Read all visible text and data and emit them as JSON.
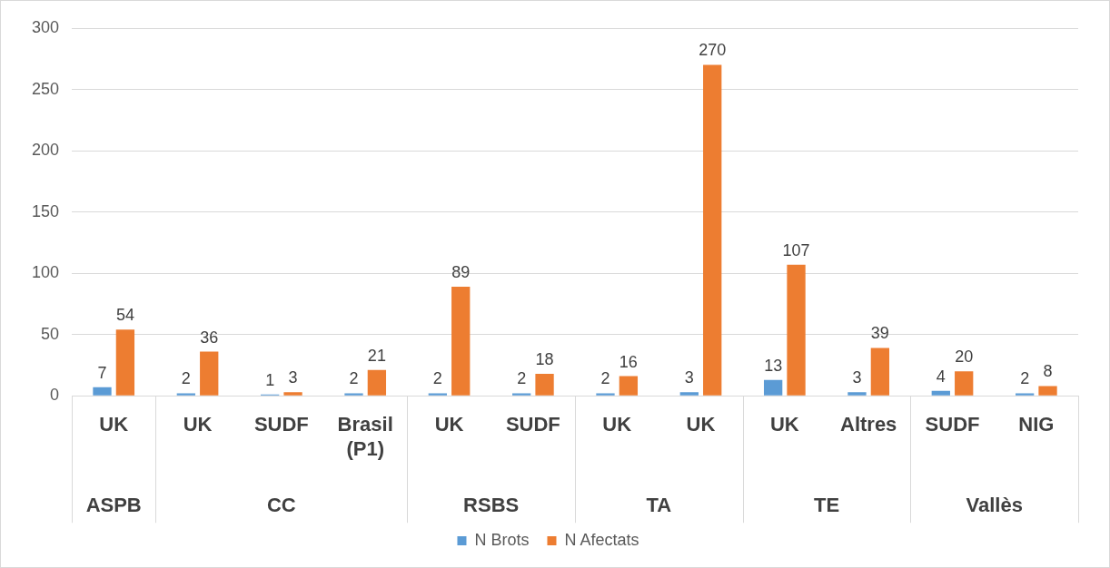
{
  "chart_data": {
    "type": "bar",
    "categories": [
      "UK",
      "UK",
      "SUDF",
      "Brasil (P1)",
      "UK",
      "SUDF",
      "UK",
      "UK",
      "UK",
      "Altres",
      "SUDF",
      "NIG"
    ],
    "series": [
      {
        "name": "N Brots",
        "color": "#5b9bd5",
        "values": [
          7,
          2,
          1,
          2,
          2,
          2,
          2,
          3,
          13,
          3,
          4,
          2
        ]
      },
      {
        "name": "N Afectats",
        "color": "#ed7d31",
        "values": [
          54,
          36,
          3,
          21,
          89,
          18,
          16,
          270,
          107,
          39,
          20,
          8
        ]
      }
    ],
    "annotations": [
      "ASPB",
      "CC",
      "RSBS",
      "TA",
      "TE",
      "Vallès"
    ],
    "ylim": [
      0,
      300
    ],
    "yticks": [
      0,
      50,
      100,
      150,
      200,
      250,
      300
    ],
    "grid": "y",
    "legend": "bottom",
    "data_labels": true
  }
}
